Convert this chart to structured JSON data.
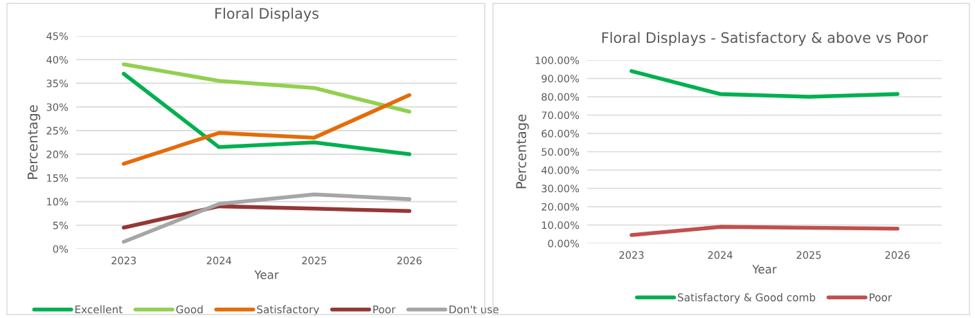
{
  "chart_data": [
    {
      "type": "line",
      "title": "Floral Displays",
      "xlabel": "Year",
      "ylabel": "Percentage",
      "categories": [
        "2023",
        "2024",
        "2025",
        "2026"
      ],
      "series": [
        {
          "name": "Excellent",
          "color": "#00b050",
          "values": [
            37,
            21.5,
            22.5,
            20
          ]
        },
        {
          "name": "Good",
          "color": "#92d050",
          "values": [
            39,
            35.5,
            34,
            29
          ]
        },
        {
          "name": "Satisfactory",
          "color": "#e46c0a",
          "values": [
            18,
            24.5,
            23.5,
            32.5
          ]
        },
        {
          "name": "Poor",
          "color": "#953735",
          "values": [
            4.5,
            9,
            8.5,
            8
          ]
        },
        {
          "name": "Don't use",
          "color": "#a6a6a6",
          "values": [
            1.5,
            9.5,
            11.5,
            10.5
          ]
        }
      ],
      "ylim": [
        0,
        45
      ],
      "yticks": [
        {
          "value": 0,
          "label": "0%"
        },
        {
          "value": 5,
          "label": "5%"
        },
        {
          "value": 10,
          "label": "10%"
        },
        {
          "value": 15,
          "label": "15%"
        },
        {
          "value": 20,
          "label": "20%"
        },
        {
          "value": 25,
          "label": "25%"
        },
        {
          "value": 30,
          "label": "30%"
        },
        {
          "value": 35,
          "label": "35%"
        },
        {
          "value": 40,
          "label": "40%"
        },
        {
          "value": 45,
          "label": "45%"
        }
      ],
      "grid": "y",
      "legend": "bottom",
      "marker": "none",
      "line_style": "solid"
    },
    {
      "type": "line",
      "title": "Floral Displays - Satisfactory & above vs Poor",
      "xlabel": "Year",
      "ylabel": "Percentage",
      "categories": [
        "2023",
        "2024",
        "2025",
        "2026"
      ],
      "series": [
        {
          "name": "Satisfactory & Good comb",
          "color": "#00b050",
          "values": [
            94,
            81.5,
            80,
            81.5
          ]
        },
        {
          "name": "Poor",
          "color": "#c0504d",
          "values": [
            4.5,
            9,
            8.5,
            8
          ]
        }
      ],
      "ylim": [
        0,
        100
      ],
      "yticks": [
        {
          "value": 0,
          "label": "0.00%"
        },
        {
          "value": 10,
          "label": "10.00%"
        },
        {
          "value": 20,
          "label": "20.00%"
        },
        {
          "value": 30,
          "label": "30.00%"
        },
        {
          "value": 40,
          "label": "40.00%"
        },
        {
          "value": 50,
          "label": "50.00%"
        },
        {
          "value": 60,
          "label": "60.00%"
        },
        {
          "value": 70,
          "label": "70.00%"
        },
        {
          "value": 80,
          "label": "80.00%"
        },
        {
          "value": 90,
          "label": "90.00%"
        },
        {
          "value": 100,
          "label": "100.00%"
        }
      ],
      "grid": "y",
      "legend": "bottom",
      "marker": "none",
      "line_style": "solid"
    }
  ]
}
